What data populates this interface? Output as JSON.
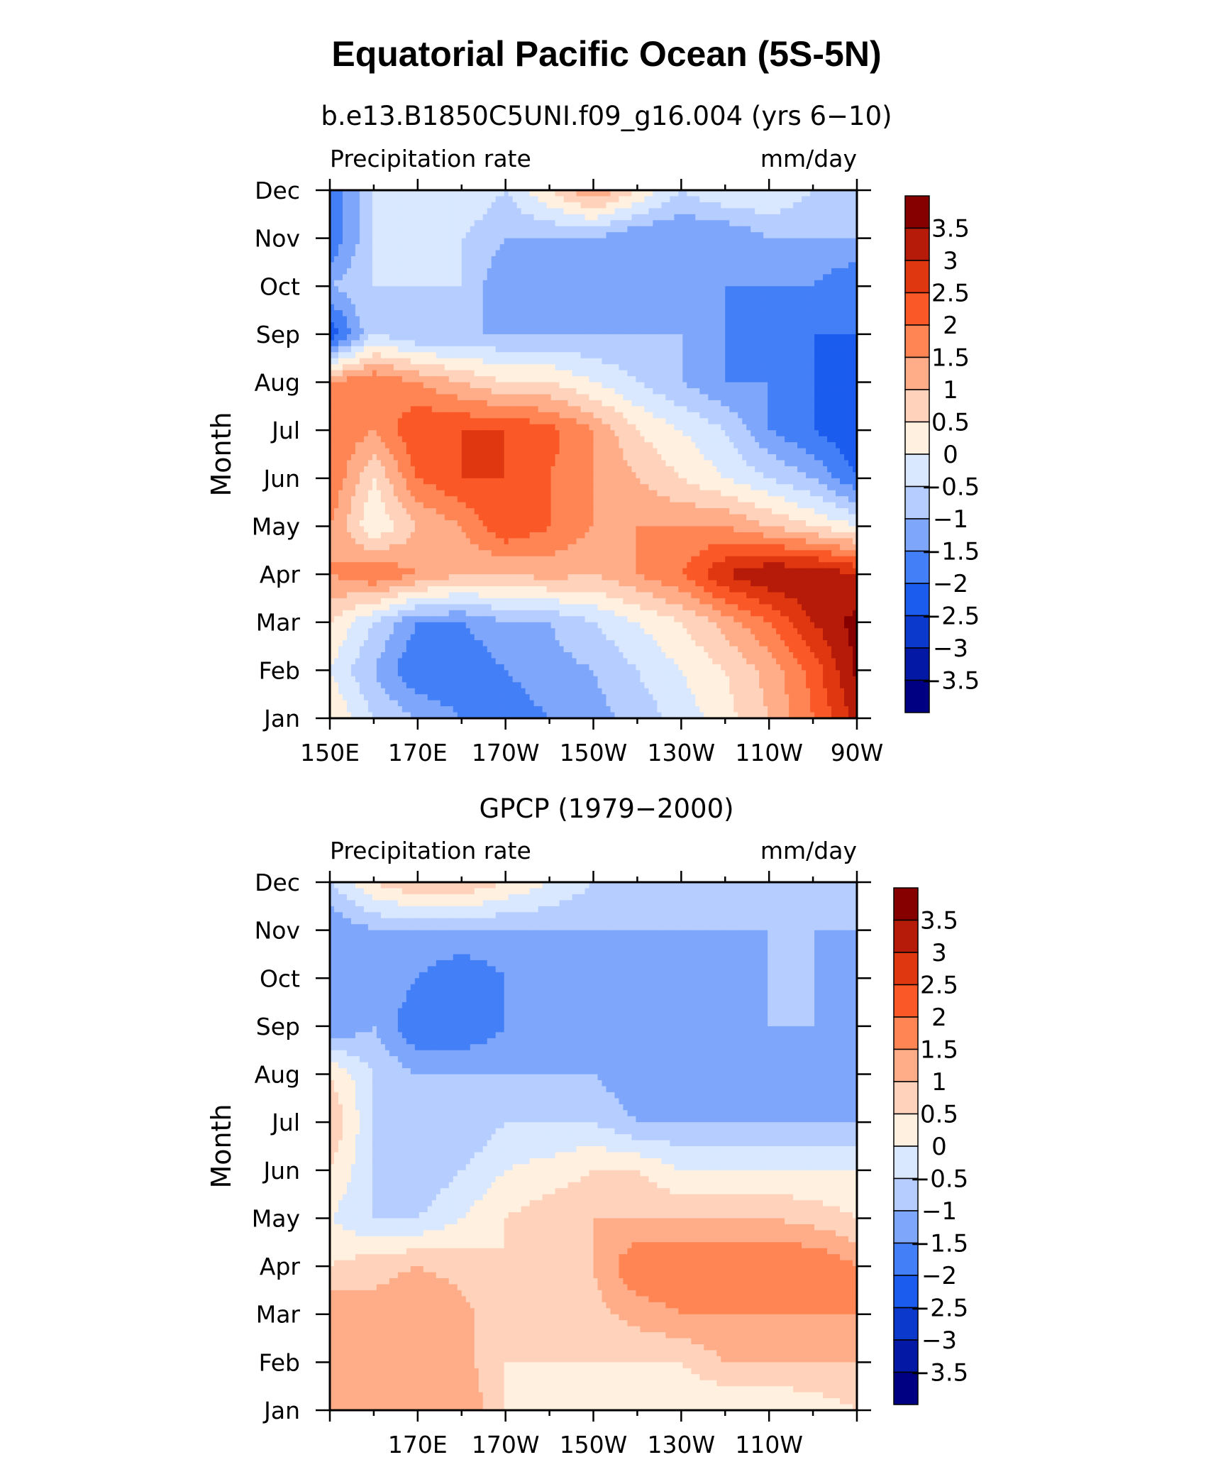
{
  "figure": {
    "title": "Equatorial Pacific Ocean (5S-5N)"
  },
  "colorbar": {
    "levels": [
      -3.5,
      -3,
      -2.5,
      -2,
      -1.5,
      -1,
      -0.5,
      0,
      0.5,
      1,
      1.5,
      2,
      2.5,
      3,
      3.5
    ],
    "labels": [
      "3.5",
      "3",
      "2.5",
      "2",
      "1.5",
      "1",
      "0.5",
      "0",
      "−0.5",
      "−1",
      "−1.5",
      "−2",
      "−2.5",
      "−3",
      "−3.5"
    ],
    "colors": [
      "#000083",
      "#0318a4",
      "#0a39cc",
      "#1b5cee",
      "#437ff7",
      "#7ea6fb",
      "#b6ceff",
      "#d9e8ff",
      "#fff0e0",
      "#ffd3bb",
      "#ffac88",
      "#ff8554",
      "#fb5828",
      "#df3710",
      "#b61a08",
      "#860000"
    ]
  },
  "chart_data": [
    {
      "type": "heatmap",
      "title": "b.e13.B1850C5UNI.f09_g16.004 (yrs 6−10)",
      "left_label": "Precipitation  rate",
      "right_label": "mm/day",
      "ylabel": "Month",
      "xlabel": "",
      "x_axis": "longitude (degrees east)",
      "xlim": [
        150,
        270
      ],
      "x_ticks": [
        150,
        170,
        190,
        210,
        230,
        250,
        270
      ],
      "x_tick_labels": [
        "150E",
        "170E",
        "170W",
        "150W",
        "130W",
        "110W",
        "90W"
      ],
      "y_categories": [
        "Jan",
        "Feb",
        "Mar",
        "Apr",
        "May",
        "Jun",
        "Jul",
        "Aug",
        "Sep",
        "Oct",
        "Nov",
        "Dec"
      ],
      "x": [
        150,
        160,
        170,
        180,
        190,
        200,
        210,
        220,
        230,
        240,
        250,
        260,
        270
      ],
      "z": [
        [
          0.5,
          -0.5,
          -1,
          -1.5,
          -1.8,
          -1.5,
          -1.2,
          -0.8,
          -0.3,
          0.3,
          1,
          2,
          3.2
        ],
        [
          0,
          -1,
          -2,
          -2,
          -1.5,
          -1.2,
          -1,
          -0.5,
          0,
          0.5,
          1.2,
          2.2,
          3.6
        ],
        [
          0.5,
          -0.5,
          -1.5,
          -1.5,
          -1,
          -1,
          -0.5,
          0,
          0.5,
          1.2,
          2,
          3,
          3.7
        ],
        [
          1.5,
          2,
          1.5,
          1,
          1,
          1.2,
          1,
          1.5,
          2,
          3,
          3.5,
          3.5,
          3
        ],
        [
          1.5,
          0,
          1,
          1.5,
          2.5,
          2,
          1.5,
          1.5,
          1.5,
          1.5,
          1,
          0.5,
          0
        ],
        [
          2,
          0.5,
          2,
          2.5,
          2.5,
          2,
          1.5,
          1,
          0.5,
          0,
          -0.5,
          -1,
          -2
        ],
        [
          2,
          1.5,
          2.5,
          2.5,
          2.5,
          2.2,
          1.5,
          0.5,
          0,
          -0.5,
          -1.5,
          -2,
          -2.5
        ],
        [
          1.5,
          2,
          1.5,
          1,
          0.5,
          0.5,
          0,
          -0.5,
          -1,
          -1.5,
          -1.5,
          -2,
          -2.5
        ],
        [
          -2.5,
          -0.5,
          -1,
          -1,
          -1,
          -1,
          -1,
          -1,
          -1,
          -1.5,
          -2,
          -2,
          -2
        ],
        [
          -1,
          -0.5,
          -0.5,
          -0.5,
          -1.5,
          -1.5,
          -1.5,
          -1.5,
          -1.5,
          -1.5,
          -1.5,
          -1.5,
          -2
        ],
        [
          -2,
          -0.5,
          -0.5,
          -0.5,
          -1,
          -1,
          -1,
          -1.5,
          -1.5,
          -1.5,
          -1,
          -1,
          -1
        ],
        [
          -2,
          -0.5,
          0,
          0,
          -0.5,
          0.5,
          1.5,
          0.5,
          -0.5,
          0,
          0,
          -0.5,
          -0.5
        ]
      ],
      "colorbar": true
    },
    {
      "type": "heatmap",
      "title": "GPCP (1979−2000)",
      "left_label": "Precipitation  rate",
      "right_label": "mm/day",
      "ylabel": "Month",
      "xlabel": "",
      "x_axis": "longitude (degrees east)",
      "xlim": [
        150,
        270
      ],
      "x_ticks": [
        170,
        190,
        210,
        230,
        250
      ],
      "x_tick_labels": [
        "170E",
        "170W",
        "150W",
        "130W",
        "110W"
      ],
      "y_categories": [
        "Jan",
        "Feb",
        "Mar",
        "Apr",
        "May",
        "Jun",
        "Jul",
        "Aug",
        "Sep",
        "Oct",
        "Nov",
        "Dec"
      ],
      "x": [
        150,
        160,
        170,
        180,
        190,
        200,
        210,
        220,
        230,
        240,
        250,
        260,
        270
      ],
      "z": [
        [
          1,
          1,
          1.2,
          1.5,
          0.5,
          0,
          0,
          0,
          0,
          0,
          0,
          0.2,
          0.5
        ],
        [
          1.5,
          1,
          1.5,
          1.2,
          0.5,
          0.5,
          0.5,
          0.5,
          0.5,
          1,
          1,
          1,
          1
        ],
        [
          1.5,
          1.2,
          1.5,
          1.2,
          0.5,
          0.5,
          0.8,
          1.2,
          1.5,
          1.5,
          1.5,
          1.5,
          1.5
        ],
        [
          0.5,
          0.8,
          1,
          0.8,
          0.5,
          0.5,
          1,
          2,
          2,
          2,
          2,
          2,
          1.5
        ],
        [
          0,
          -0.5,
          -0.5,
          0,
          0.5,
          0.8,
          1,
          1,
          1,
          1,
          1,
          0.8,
          0.5
        ],
        [
          0.5,
          -0.5,
          -1,
          -0.5,
          0,
          0.2,
          0.5,
          0.5,
          0,
          0,
          0,
          0,
          0
        ],
        [
          1,
          -0.5,
          -1,
          -1,
          -0.5,
          -0.5,
          -0.5,
          -1,
          -1,
          -1,
          -1,
          -1,
          -1
        ],
        [
          0.5,
          -0.5,
          -1,
          -1,
          -1,
          -1,
          -1,
          -1.5,
          -1.5,
          -1.5,
          -1,
          -1.5,
          -1.5
        ],
        [
          -1.5,
          -1,
          -2,
          -2,
          -1.5,
          -1.5,
          -1.5,
          -1.5,
          -1.5,
          -1.5,
          -1,
          -1,
          -1.5
        ],
        [
          -1.5,
          -1,
          -1.5,
          -2,
          -1.5,
          -1,
          -1.5,
          -1.5,
          -1.5,
          -1.5,
          -1,
          -1,
          -1.5
        ],
        [
          -1.5,
          -1,
          -1,
          -1,
          -1,
          -1,
          -1,
          -1,
          -1,
          -1,
          -1,
          -1,
          -1
        ],
        [
          -0.5,
          0.5,
          1,
          1,
          0.5,
          0,
          -0.5,
          -0.5,
          -0.5,
          -0.5,
          -0.5,
          -0.5,
          -0.5
        ]
      ],
      "colorbar": true
    }
  ]
}
